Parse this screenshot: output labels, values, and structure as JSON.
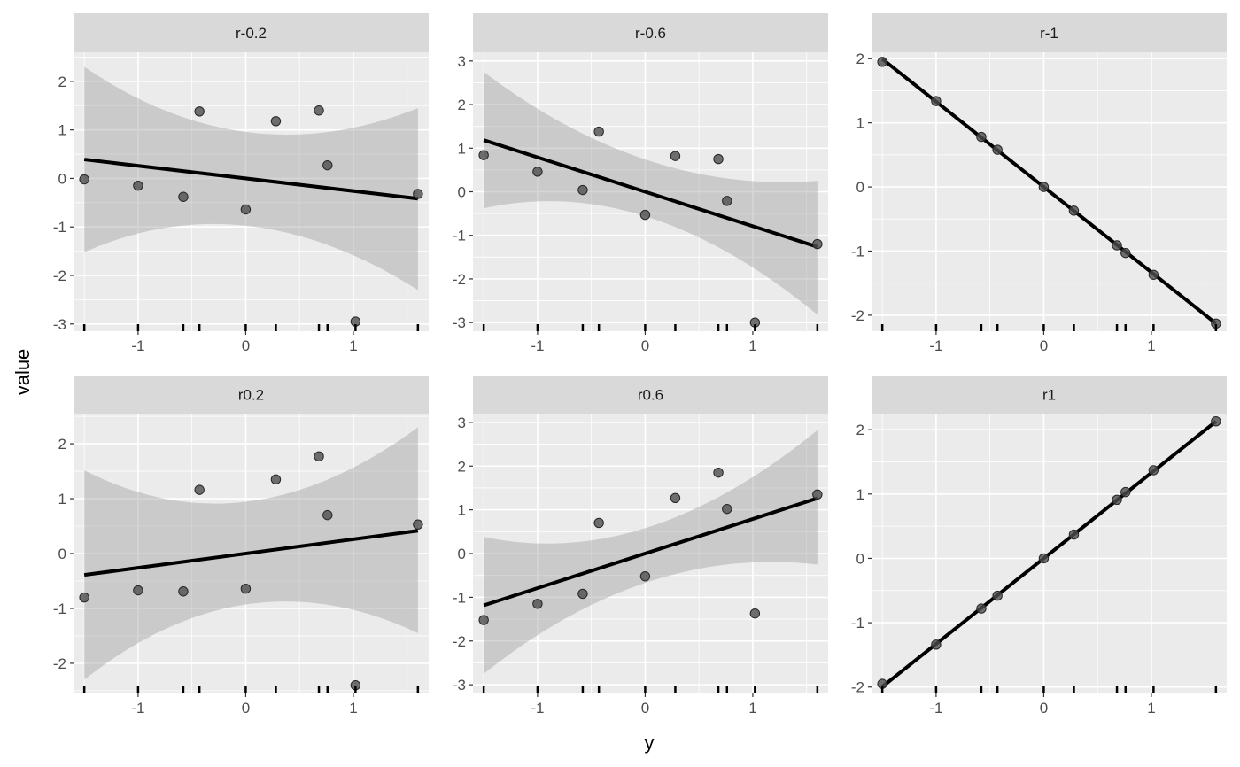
{
  "chart_data": {
    "type": "scatter",
    "facet_layout": "2 rows x 3 columns",
    "xlabel": "y",
    "ylabel": "value",
    "x_tick_labels": [
      "-1",
      "0",
      "1"
    ],
    "x_ticks": [
      -1,
      0,
      1
    ],
    "xlim": [
      -1.6,
      1.7
    ],
    "x": [
      -1.5,
      -1.0,
      -0.58,
      -0.43,
      0.0,
      0.28,
      0.68,
      0.76,
      1.02,
      1.6
    ],
    "smooth": "lm with confidence band",
    "rug": "bottom",
    "panels": [
      {
        "label": "r-0.2",
        "y": [
          -0.02,
          -0.15,
          -0.38,
          1.38,
          -0.64,
          1.18,
          1.4,
          0.27,
          -2.95,
          -0.32
        ],
        "ylim": [
          -3.15,
          2.6
        ],
        "y_ticks": [
          -3,
          -2,
          -1,
          0,
          1,
          2
        ],
        "y_tick_labels": [
          "-3",
          "-2",
          "-1",
          "0",
          "1",
          "2"
        ],
        "fit": {
          "intercept": 0.0,
          "slope": -0.26
        },
        "band_lower": [
          -1.52,
          -0.98,
          -2.3
        ],
        "band_upper": [
          2.3,
          0.95,
          1.45
        ]
      },
      {
        "label": "r-0.6",
        "y": [
          0.84,
          0.46,
          0.04,
          1.38,
          -0.53,
          0.82,
          0.75,
          -0.21,
          -3.0,
          -1.2
        ],
        "ylim": [
          -3.2,
          3.2
        ],
        "y_ticks": [
          -3,
          -2,
          -1,
          0,
          1,
          2,
          3
        ],
        "y_tick_labels": [
          "-3",
          "-2",
          "-1",
          "0",
          "1",
          "2",
          "3"
        ],
        "fit": {
          "intercept": 0.0,
          "slope": -0.79
        },
        "band_lower": [
          -0.38,
          -0.58,
          -2.82
        ],
        "band_upper": [
          2.75,
          0.72,
          0.25
        ]
      },
      {
        "label": "r-1",
        "y": [
          1.95,
          1.34,
          0.78,
          0.58,
          0.0,
          -0.37,
          -0.91,
          -1.03,
          -1.37,
          -2.13
        ],
        "ylim": [
          -2.25,
          2.1
        ],
        "y_ticks": [
          -2,
          -1,
          0,
          1,
          2
        ],
        "y_tick_labels": [
          "-2",
          "-1",
          "0",
          "1",
          "2"
        ],
        "fit": {
          "intercept": 0.0,
          "slope": -1.33
        }
      },
      {
        "label": "r0.2",
        "y": [
          -0.8,
          -0.67,
          -0.69,
          1.16,
          -0.64,
          1.35,
          1.77,
          0.7,
          -2.4,
          0.53
        ],
        "ylim": [
          -2.55,
          2.55
        ],
        "y_ticks": [
          -2,
          -1,
          0,
          1,
          2
        ],
        "y_tick_labels": [
          "-2",
          "-1",
          "0",
          "1",
          "2"
        ],
        "fit": {
          "intercept": 0.0,
          "slope": 0.26
        },
        "band_lower": [
          -2.3,
          -0.92,
          -1.45
        ],
        "band_upper": [
          1.52,
          0.95,
          2.3
        ]
      },
      {
        "label": "r0.6",
        "y": [
          -1.52,
          -1.15,
          -0.92,
          0.7,
          -0.52,
          1.27,
          1.85,
          1.02,
          -1.37,
          1.35
        ],
        "ylim": [
          -3.2,
          3.2
        ],
        "y_ticks": [
          -3,
          -2,
          -1,
          0,
          1,
          2,
          3
        ],
        "y_tick_labels": [
          "-3",
          "-2",
          "-1",
          "0",
          "1",
          "2",
          "3"
        ],
        "fit": {
          "intercept": 0.0,
          "slope": 0.79
        },
        "band_lower": [
          -2.75,
          -0.65,
          -0.25
        ],
        "band_upper": [
          0.38,
          0.6,
          2.82
        ]
      },
      {
        "label": "r1",
        "y": [
          -1.95,
          -1.34,
          -0.78,
          -0.58,
          0.0,
          0.37,
          0.91,
          1.03,
          1.37,
          2.13
        ],
        "ylim": [
          -2.1,
          2.25
        ],
        "y_ticks": [
          -2,
          -1,
          0,
          1,
          2
        ],
        "y_tick_labels": [
          "-2",
          "-1",
          "0",
          "1",
          "2"
        ],
        "fit": {
          "intercept": 0.0,
          "slope": 1.33
        }
      }
    ]
  }
}
